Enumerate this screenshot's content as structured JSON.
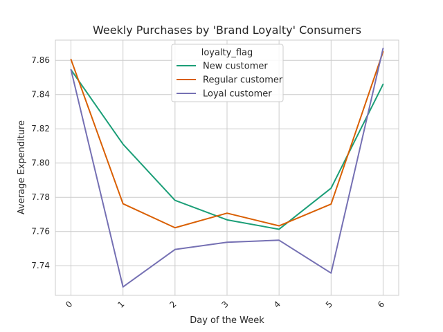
{
  "chart_data": {
    "type": "line",
    "title": "Weekly Purchases by 'Brand Loyalty' Consumers",
    "xlabel": "Day of the Week",
    "ylabel": "Average Expenditure",
    "x": [
      0,
      1,
      2,
      3,
      4,
      5,
      6
    ],
    "x_tick_labels": [
      "0",
      "1",
      "2",
      "3",
      "4",
      "5",
      "6"
    ],
    "x_tick_rotation_deg": 45,
    "xlim": [
      -0.3,
      6.3
    ],
    "y_ticks": [
      7.74,
      7.76,
      7.78,
      7.8,
      7.82,
      7.84,
      7.86
    ],
    "y_tick_labels": [
      "7.74",
      "7.76",
      "7.78",
      "7.80",
      "7.82",
      "7.84",
      "7.86"
    ],
    "ylim": [
      7.7227,
      7.8718
    ],
    "grid": true,
    "legend": {
      "title": "loyalty_flag",
      "placement": "top-center"
    },
    "series": [
      {
        "name": "New customer",
        "color": "#1b9e77",
        "values": [
          7.8545,
          7.811,
          7.7782,
          7.7668,
          7.7613,
          7.7853,
          7.846
        ]
      },
      {
        "name": "Regular customer",
        "color": "#d95f02",
        "values": [
          7.8605,
          7.7762,
          7.7622,
          7.7707,
          7.7633,
          7.776,
          7.865
        ]
      },
      {
        "name": "Loyal customer",
        "color": "#7570b3",
        "values": [
          7.8545,
          7.7276,
          7.7495,
          7.7537,
          7.7549,
          7.7357,
          7.867
        ]
      }
    ]
  }
}
